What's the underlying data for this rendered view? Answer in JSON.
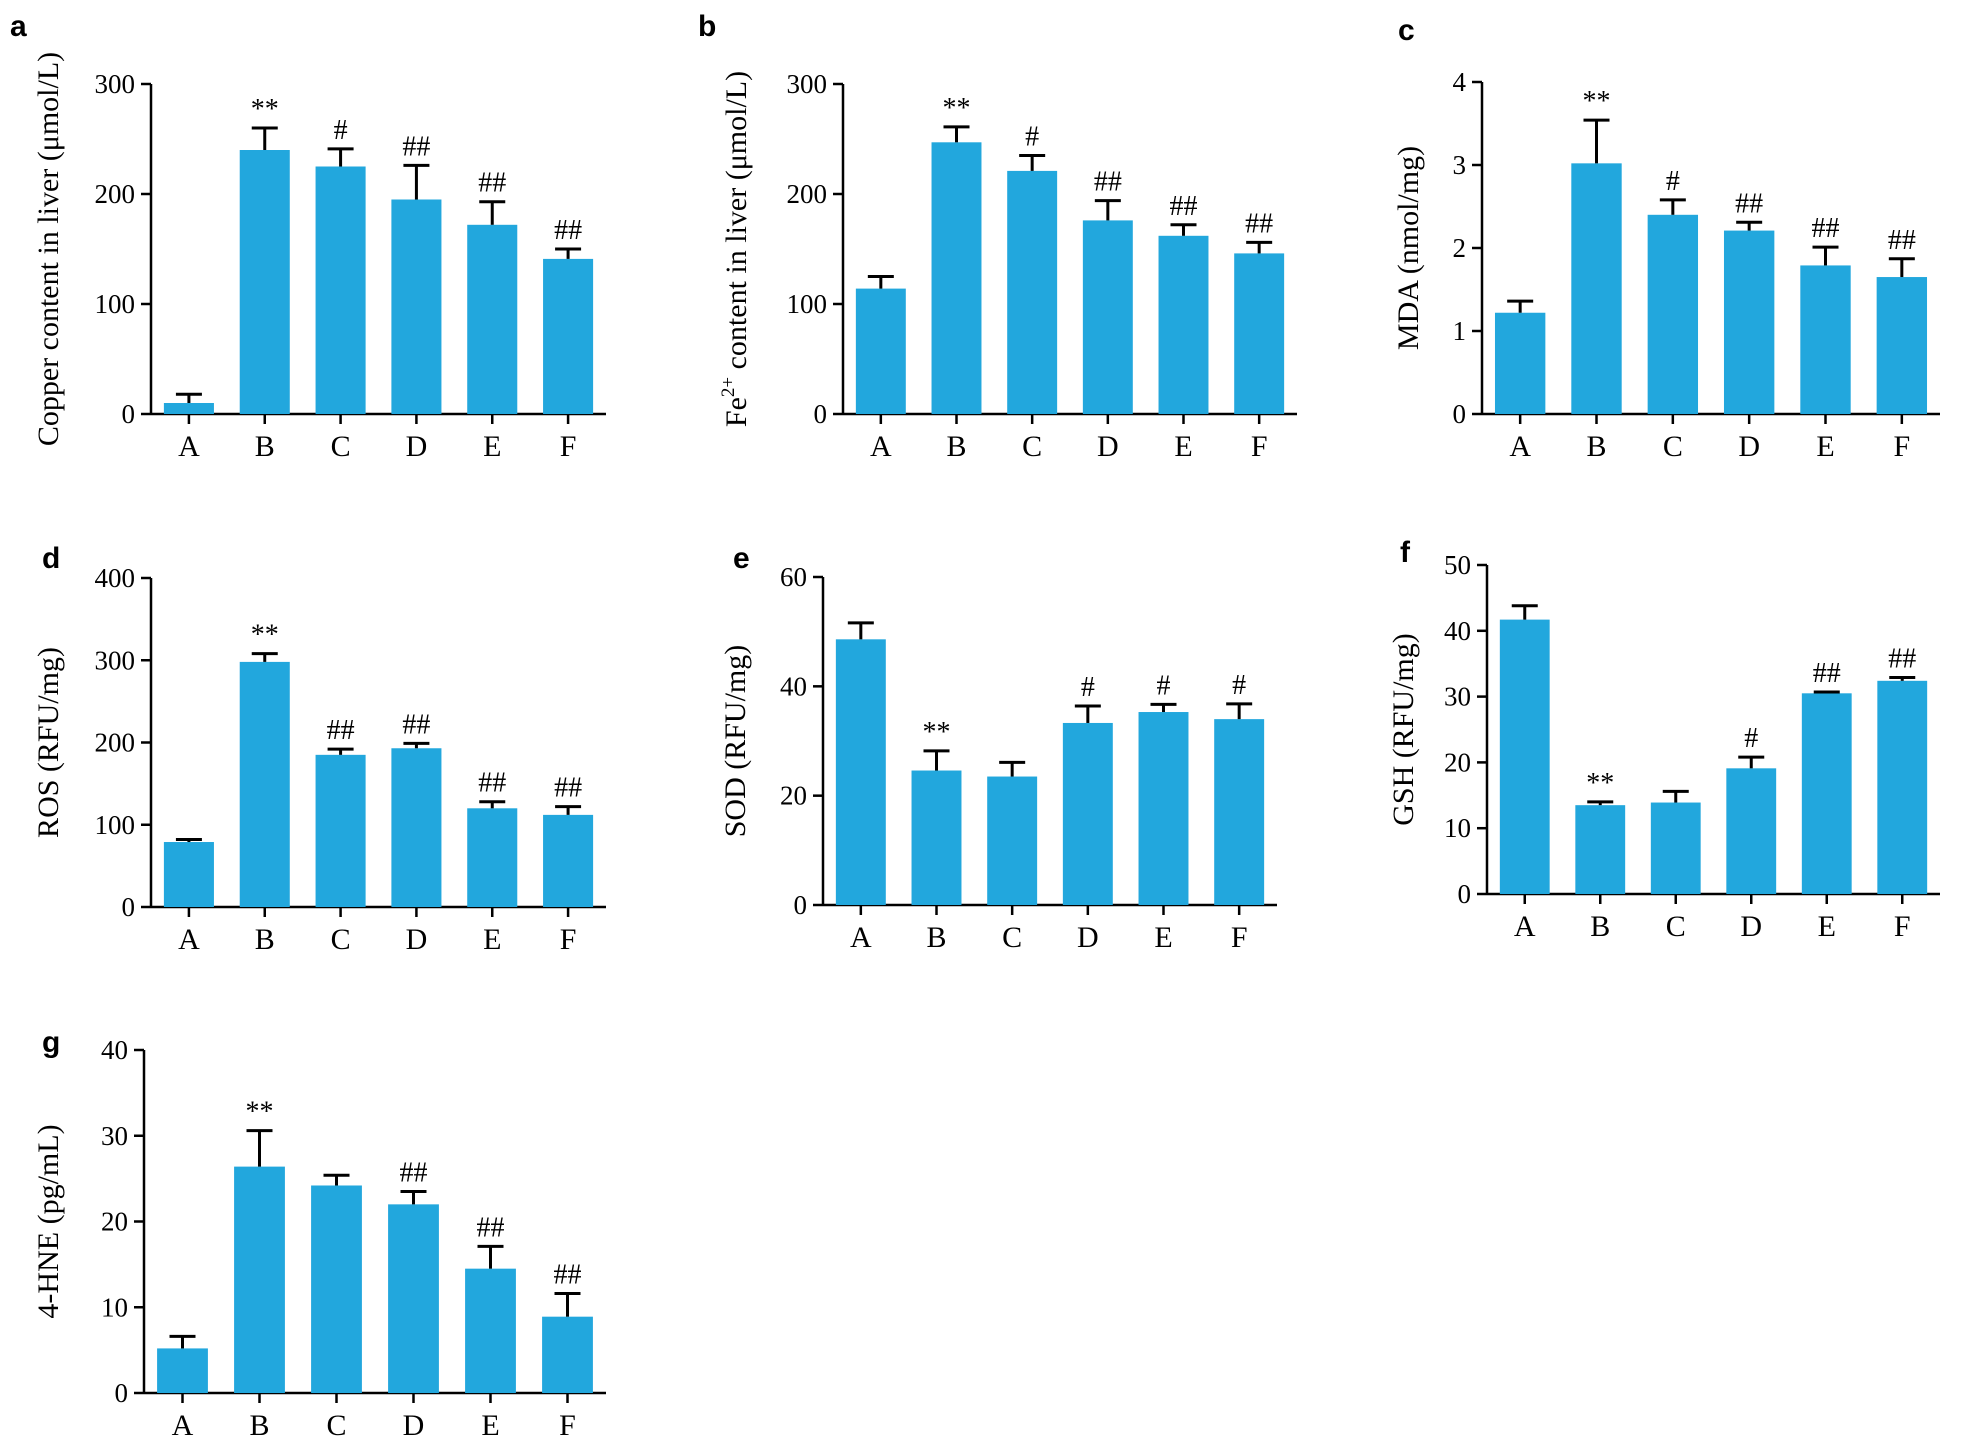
{
  "figure": {
    "bar_color": "#22a7dd",
    "categories": [
      "A",
      "B",
      "C",
      "D",
      "E",
      "F"
    ]
  },
  "chart_data": [
    {
      "panel": "a",
      "type": "bar",
      "ylabel": "Copper content in liver (μmol/L)",
      "ylim": [
        0,
        300
      ],
      "yticks": [
        0,
        100,
        200,
        300
      ],
      "categories": [
        "A",
        "B",
        "C",
        "D",
        "E",
        "F"
      ],
      "values": [
        10,
        240,
        225,
        195,
        172,
        141
      ],
      "errors": [
        8,
        20,
        16,
        31,
        21,
        9
      ],
      "significance": [
        "",
        "**",
        "#",
        "##",
        "##",
        "##"
      ]
    },
    {
      "panel": "b",
      "type": "bar",
      "ylabel": "Fe2+ content in liver (μmol/L)",
      "ylim": [
        0,
        300
      ],
      "yticks": [
        0,
        100,
        200,
        300
      ],
      "categories": [
        "A",
        "B",
        "C",
        "D",
        "E",
        "F"
      ],
      "values": [
        114,
        247,
        221,
        176,
        162,
        146
      ],
      "errors": [
        11,
        14,
        14,
        18,
        10,
        10
      ],
      "significance": [
        "",
        "**",
        "#",
        "##",
        "##",
        "##"
      ]
    },
    {
      "panel": "c",
      "type": "bar",
      "ylabel": "MDA (nmol/mg)",
      "ylim": [
        0,
        4
      ],
      "yticks": [
        0,
        1,
        2,
        3,
        4
      ],
      "categories": [
        "A",
        "B",
        "C",
        "D",
        "E",
        "F"
      ],
      "values": [
        1.22,
        3.02,
        2.4,
        2.21,
        1.79,
        1.65
      ],
      "errors": [
        0.14,
        0.52,
        0.18,
        0.1,
        0.22,
        0.22
      ],
      "significance": [
        "",
        "**",
        "#",
        "##",
        "##",
        "##"
      ]
    },
    {
      "panel": "d",
      "type": "bar",
      "ylabel": "ROS (RFU/mg)",
      "ylim": [
        0,
        400
      ],
      "yticks": [
        0,
        100,
        200,
        300,
        400
      ],
      "categories": [
        "A",
        "B",
        "C",
        "D",
        "E",
        "F"
      ],
      "values": [
        79,
        298,
        185,
        193,
        120,
        112
      ],
      "errors": [
        3,
        10,
        7,
        6,
        8,
        10
      ],
      "significance": [
        "",
        "**",
        "##",
        "##",
        "##",
        "##"
      ]
    },
    {
      "panel": "e",
      "type": "bar",
      "ylabel": "SOD (RFU/mg)",
      "ylim": [
        0,
        60
      ],
      "yticks": [
        0,
        20,
        40,
        60
      ],
      "categories": [
        "A",
        "B",
        "C",
        "D",
        "E",
        "F"
      ],
      "values": [
        48.6,
        24.6,
        23.5,
        33.3,
        35.3,
        34.0
      ],
      "errors": [
        3.0,
        3.6,
        2.6,
        3.1,
        1.4,
        2.8
      ],
      "significance": [
        "",
        "**",
        "",
        "#",
        "#",
        "#"
      ]
    },
    {
      "panel": "f",
      "type": "bar",
      "ylabel": "GSH (RFU/mg)",
      "ylim": [
        0,
        50
      ],
      "yticks": [
        0,
        10,
        20,
        30,
        40,
        50
      ],
      "categories": [
        "A",
        "B",
        "C",
        "D",
        "E",
        "F"
      ],
      "values": [
        41.7,
        13.5,
        13.9,
        19.1,
        30.5,
        32.4
      ],
      "errors": [
        2.1,
        0.5,
        1.7,
        1.7,
        0.2,
        0.5
      ],
      "significance": [
        "",
        "**",
        "",
        "#",
        "##",
        "##"
      ]
    },
    {
      "panel": "g",
      "type": "bar",
      "ylabel": "4-HNE (pg/mL)",
      "ylim": [
        0,
        40
      ],
      "yticks": [
        0,
        10,
        20,
        30,
        40
      ],
      "categories": [
        "A",
        "B",
        "C",
        "D",
        "E",
        "F"
      ],
      "values": [
        5.2,
        26.4,
        24.2,
        22.0,
        14.5,
        8.9
      ],
      "errors": [
        1.4,
        4.2,
        1.2,
        1.5,
        2.6,
        2.7
      ],
      "significance": [
        "",
        "**",
        "",
        "##",
        "##",
        "##"
      ]
    }
  ]
}
